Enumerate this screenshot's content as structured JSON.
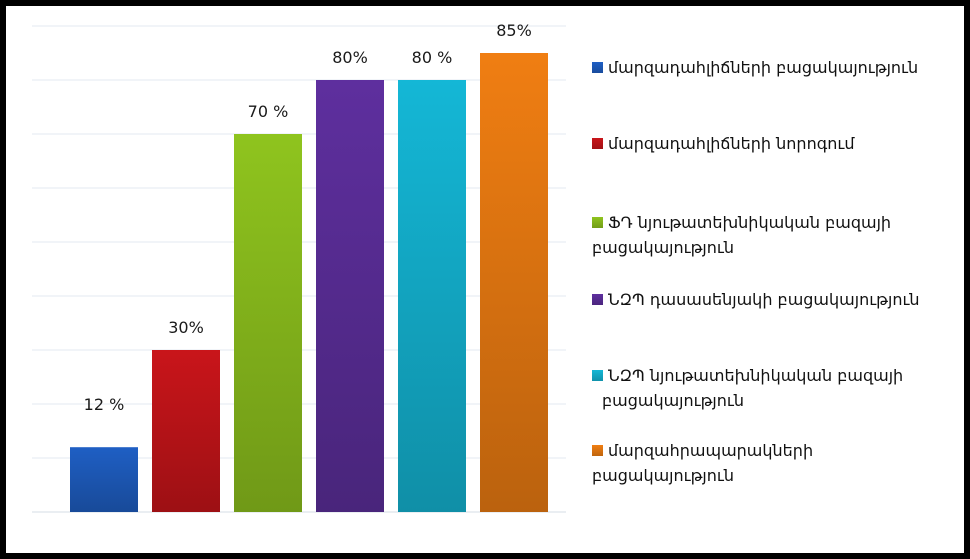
{
  "chart_data": {
    "type": "bar",
    "categories": [
      "մարզադահլիճների բացակայություն",
      "մարզադահլիճների նորոգում",
      "ՖԴ նյութատեխնիկական բազայի բացակայություն",
      "ՆԶՊ դասասենյակի բացակայություն",
      "ՆԶՊ նյութատեխնիկական բազայի բացակայություն",
      "մարզահրապարակների բացակայություն"
    ],
    "values": [
      12,
      30,
      70,
      80,
      80,
      85
    ],
    "data_labels": [
      "12 %",
      "30%",
      "70 %",
      "80%",
      "80 %",
      "85%"
    ],
    "colors": [
      "#1f5fc4",
      "#c9151a",
      "#8fc41e",
      "#5e2f9e",
      "#14b7d6",
      "#f07e12"
    ],
    "ylim": [
      0,
      90
    ],
    "grid": true,
    "legend_position": "right"
  }
}
